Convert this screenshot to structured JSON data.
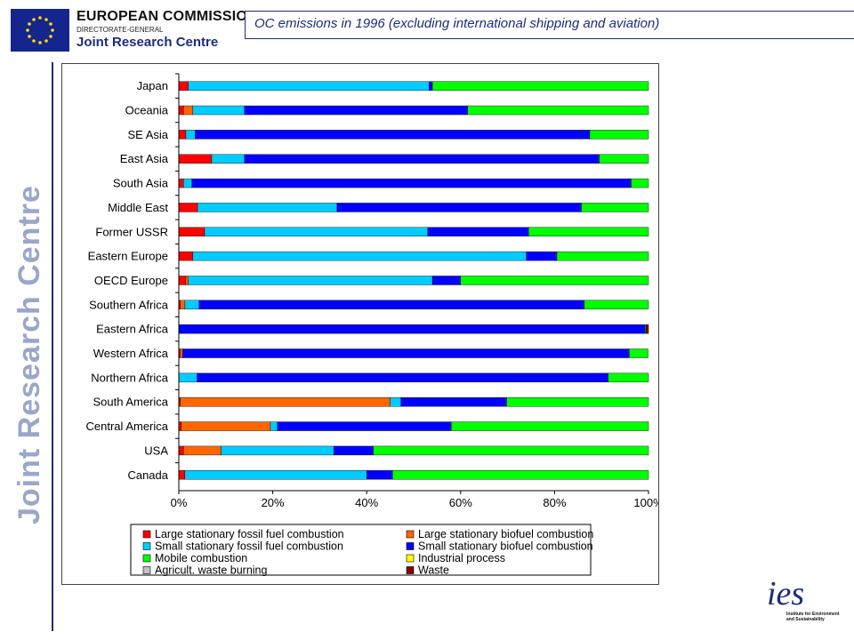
{
  "header": {
    "org": "EUROPEAN COMMISSION",
    "directorate": "DIRECTORATE-GENERAL",
    "centre": "Joint Research Centre",
    "slide_title": "OC emissions in 1996 (excluding international shipping and aviation)",
    "side_text": "Joint Research Centre",
    "ies_label": "ies",
    "ies_subtitle": "Institute for Environment and Sustainability"
  },
  "chart_data": {
    "type": "bar",
    "orientation": "horizontal",
    "stacked": "100%",
    "title": "",
    "xlabel": "",
    "ylabel": "",
    "xlim": [
      0,
      100
    ],
    "x_ticks": [
      "0%",
      "20%",
      "40%",
      "60%",
      "80%",
      "100%"
    ],
    "grid": false,
    "legend_position": "bottom",
    "categories": [
      "Japan",
      "Oceania",
      "SE Asia",
      "East Asia",
      "South Asia",
      "Middle East",
      "Former USSR",
      "Eastern Europe",
      "OECD Europe",
      "Southern Africa",
      "Eastern Africa",
      "Western Africa",
      "Northern Africa",
      "South America",
      "Central America",
      "USA",
      "Canada"
    ],
    "series": [
      {
        "name": "Large stationary fossil fuel combustion",
        "color": "#ff0000",
        "values": [
          2,
          1,
          1.5,
          7,
          1,
          4,
          5.5,
          3,
          1.5,
          0.3,
          0,
          0.3,
          0,
          0.3,
          0.5,
          1,
          1.3
        ]
      },
      {
        "name": "Large stationary biofuel combustion",
        "color": "#ff6600",
        "values": [
          0,
          2,
          0,
          0,
          0,
          0,
          0,
          0,
          0.5,
          1,
          0,
          0.5,
          0,
          44.7,
          19,
          8,
          0
        ]
      },
      {
        "name": "Small stationary fossil fuel combustion",
        "color": "#00ccff",
        "values": [
          51.3,
          11,
          2,
          7,
          1.8,
          29.7,
          47.5,
          71,
          52,
          3,
          0,
          0,
          3.9,
          2.3,
          1.5,
          24,
          38.7
        ]
      },
      {
        "name": "Small stationary biofuel combustion",
        "color": "#0000ff",
        "values": [
          0.7,
          47.5,
          84,
          75.5,
          93.5,
          52,
          21.5,
          6.5,
          6,
          82,
          99.3,
          95.1,
          87.5,
          22.5,
          37,
          8.4,
          5.5
        ]
      },
      {
        "name": "Mobile combustion",
        "color": "#00ff00",
        "values": [
          46,
          38.5,
          12.5,
          10.5,
          3.7,
          14.3,
          25.5,
          19.5,
          40,
          13.7,
          0.2,
          4,
          8.6,
          30.2,
          42,
          58.6,
          54.5
        ]
      },
      {
        "name": "Industrial process",
        "color": "#ffff00",
        "values": [
          0,
          0,
          0,
          0,
          0,
          0,
          0,
          0,
          0,
          0,
          0,
          0,
          0,
          0,
          0,
          0,
          0
        ]
      },
      {
        "name": "Agricult. waste burning",
        "color": "#c0c0c0",
        "values": [
          0,
          0,
          0,
          0,
          0,
          0,
          0,
          0,
          0,
          0,
          0,
          0,
          0,
          0,
          0,
          0,
          0
        ]
      },
      {
        "name": "Waste",
        "color": "#800000",
        "values": [
          0,
          0,
          0,
          0,
          0,
          0,
          0,
          0,
          0,
          0,
          0.5,
          0,
          0,
          0,
          0,
          0,
          0
        ]
      }
    ]
  }
}
